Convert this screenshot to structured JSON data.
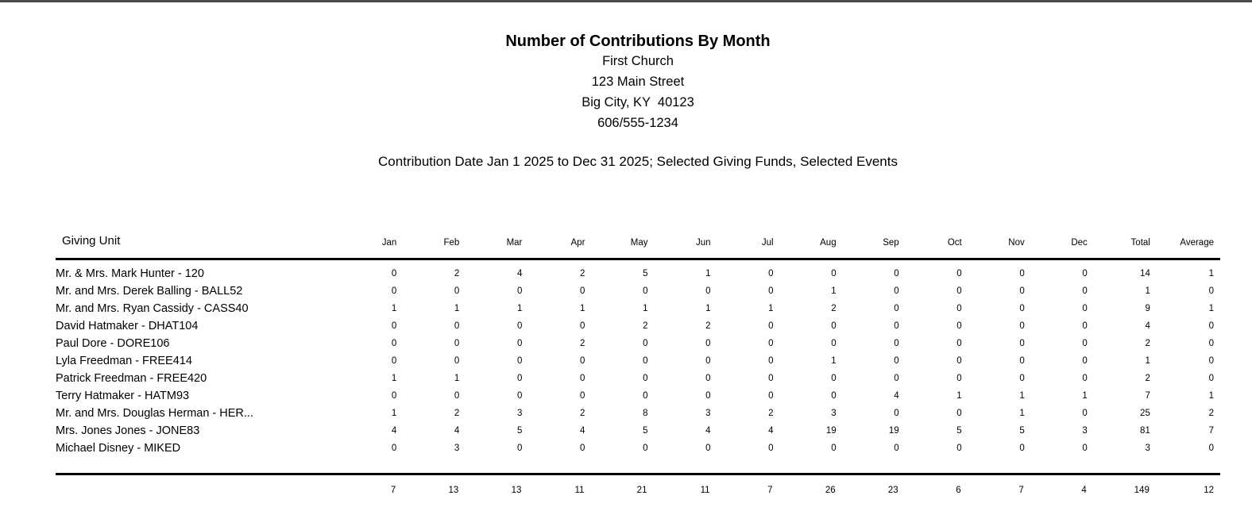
{
  "page": {
    "top_bar_color": "#4a4a4a",
    "title": "Number of Contributions By Month",
    "organization": "First Church",
    "address_line1": "123 Main Street",
    "address_line2": "Big City, KY  40123",
    "phone": "606/555-1234",
    "criteria_line": "Contribution Date Jan 1 2025 to Dec 31 2025; Selected Giving Funds, Selected Events"
  },
  "report_table": {
    "giving_unit_header": "Giving Unit",
    "month_headers": [
      "Jan",
      "Feb",
      "Mar",
      "Apr",
      "May",
      "Jun",
      "Jul",
      "Aug",
      "Sep",
      "Oct",
      "Nov",
      "Dec",
      "Total",
      "Average"
    ],
    "rows": [
      {
        "giving_unit": "Mr. & Mrs. Mark Hunter - 120",
        "values": [
          0,
          2,
          4,
          2,
          5,
          1,
          0,
          0,
          0,
          0,
          0,
          0,
          14,
          1
        ]
      },
      {
        "giving_unit": "Mr. and Mrs. Derek Balling - BALL52",
        "values": [
          0,
          0,
          0,
          0,
          0,
          0,
          0,
          1,
          0,
          0,
          0,
          0,
          1,
          0
        ]
      },
      {
        "giving_unit": "Mr. and Mrs. Ryan Cassidy - CASS40",
        "values": [
          1,
          1,
          1,
          1,
          1,
          1,
          1,
          2,
          0,
          0,
          0,
          0,
          9,
          1
        ]
      },
      {
        "giving_unit": "David Hatmaker - DHAT104",
        "values": [
          0,
          0,
          0,
          0,
          2,
          2,
          0,
          0,
          0,
          0,
          0,
          0,
          4,
          0
        ]
      },
      {
        "giving_unit": "Paul Dore - DORE106",
        "values": [
          0,
          0,
          0,
          2,
          0,
          0,
          0,
          0,
          0,
          0,
          0,
          0,
          2,
          0
        ]
      },
      {
        "giving_unit": "Lyla Freedman - FREE414",
        "values": [
          0,
          0,
          0,
          0,
          0,
          0,
          0,
          1,
          0,
          0,
          0,
          0,
          1,
          0
        ]
      },
      {
        "giving_unit": "Patrick Freedman - FREE420",
        "values": [
          1,
          1,
          0,
          0,
          0,
          0,
          0,
          0,
          0,
          0,
          0,
          0,
          2,
          0
        ]
      },
      {
        "giving_unit": "Terry Hatmaker - HATM93",
        "values": [
          0,
          0,
          0,
          0,
          0,
          0,
          0,
          0,
          4,
          1,
          1,
          1,
          7,
          1
        ]
      },
      {
        "giving_unit": "Mr. and Mrs. Douglas Herman - HER...",
        "values": [
          1,
          2,
          3,
          2,
          8,
          3,
          2,
          3,
          0,
          0,
          1,
          0,
          25,
          2
        ]
      },
      {
        "giving_unit": "Mrs. Jones Jones - JONE83",
        "values": [
          4,
          4,
          5,
          4,
          5,
          4,
          4,
          19,
          19,
          5,
          5,
          3,
          81,
          7
        ]
      },
      {
        "giving_unit": "Michael Disney - MIKED",
        "values": [
          0,
          3,
          0,
          0,
          0,
          0,
          0,
          0,
          0,
          0,
          0,
          0,
          3,
          0
        ]
      }
    ],
    "totals": [
      7,
      13,
      13,
      11,
      21,
      11,
      7,
      26,
      23,
      6,
      7,
      4,
      149,
      12
    ]
  }
}
